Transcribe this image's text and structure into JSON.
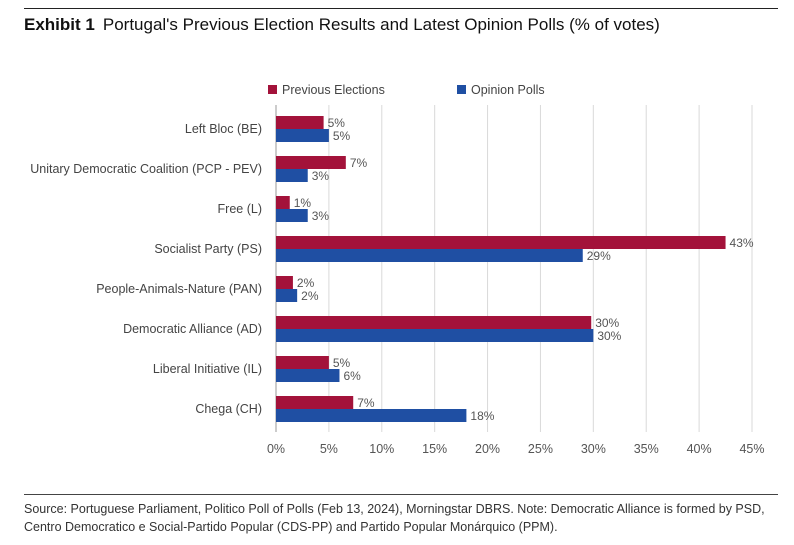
{
  "header": {
    "exhibit_label": "Exhibit 1",
    "title": "Portugal's Previous Election Results and Latest Opinion Polls (% of votes)"
  },
  "footer": {
    "source": "Source: Portuguese Parliament, Politico Poll of Polls (Feb 13, 2024), Morningstar DBRS. Note: Democratic Alliance is formed by PSD, Centro Democratico e Social-Partido Popular (CDS-PP) and Partido Popular Monárquico (PPM)."
  },
  "chart_data": {
    "type": "bar",
    "orientation": "horizontal",
    "categories": [
      "Left Bloc (BE)",
      "Unitary Democratic Coalition (PCP - PEV)",
      "Free (L)",
      "Socialist Party (PS)",
      "People-Animals-Nature (PAN)",
      "Democratic Alliance (AD)",
      "Liberal Initiative (IL)",
      "Chega (CH)"
    ],
    "series": [
      {
        "name": "Previous Elections",
        "color": "#a3123a",
        "values": [
          4.5,
          6.6,
          1.3,
          42.5,
          1.6,
          29.8,
          5.0,
          7.3
        ],
        "labels": [
          "5%",
          "7%",
          "1%",
          "43%",
          "2%",
          "30%",
          "5%",
          "7%"
        ]
      },
      {
        "name": "Opinion Polls",
        "color": "#1f4fa3",
        "values": [
          5.0,
          3.0,
          3.0,
          29.0,
          2.0,
          30.0,
          6.0,
          18.0
        ],
        "labels": [
          "5%",
          "3%",
          "3%",
          "29%",
          "2%",
          "30%",
          "6%",
          "18%"
        ]
      }
    ],
    "xlim": [
      0,
      45
    ],
    "xticks": [
      0,
      5,
      10,
      15,
      20,
      25,
      30,
      35,
      40,
      45
    ],
    "xtick_labels": [
      "0%",
      "5%",
      "10%",
      "15%",
      "20%",
      "25%",
      "30%",
      "35%",
      "40%",
      "45%"
    ],
    "grid": "vertical",
    "legend_position": "top",
    "xlabel": "",
    "ylabel": ""
  }
}
